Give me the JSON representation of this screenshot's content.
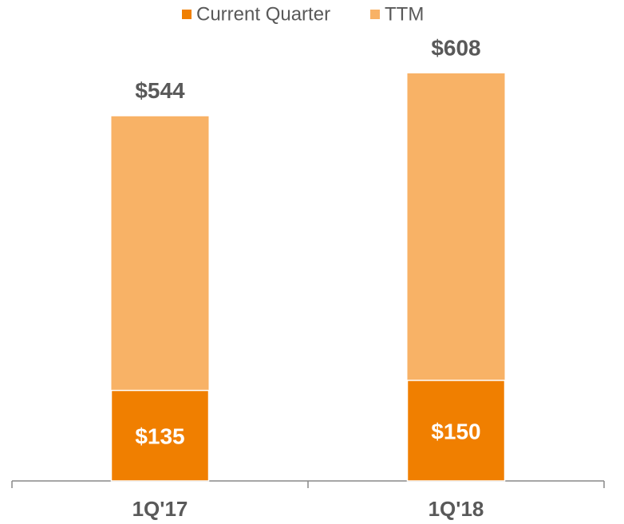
{
  "chart_data": {
    "type": "bar",
    "overlap": true,
    "categories": [
      "1Q'17",
      "1Q'18"
    ],
    "series": [
      {
        "name": "Current Quarter",
        "color": "#f07f00",
        "values": [
          135,
          150
        ],
        "value_labels": [
          "$135",
          "$150"
        ]
      },
      {
        "name": "TTM",
        "color": "#f8b266",
        "values": [
          544,
          608
        ],
        "value_labels": [
          "$544",
          "$608"
        ]
      }
    ]
  }
}
